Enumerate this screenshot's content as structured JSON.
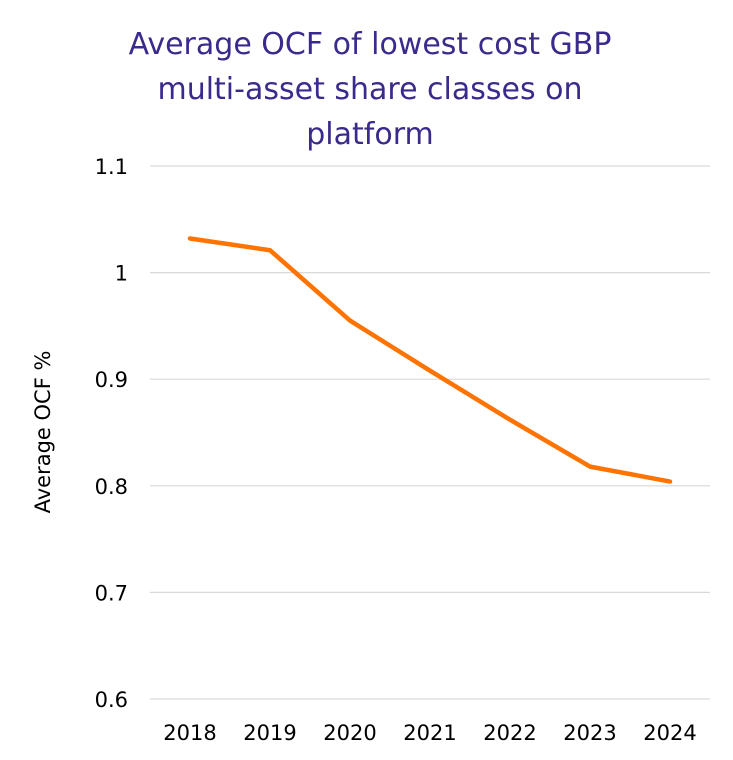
{
  "chart_data": {
    "type": "line",
    "title_lines": [
      "Average OCF of lowest cost GBP",
      "multi-asset share classes on",
      "platform"
    ],
    "xlabel": "",
    "ylabel": "Average OCF %",
    "categories": [
      "2018",
      "2019",
      "2020",
      "2021",
      "2022",
      "2023",
      "2024"
    ],
    "series": [
      {
        "values": [
          1.032,
          1.021,
          0.955,
          0.908,
          0.862,
          0.818,
          0.804
        ]
      }
    ],
    "ylim": [
      0.6,
      1.1
    ],
    "yticks": [
      "0.6",
      "0.7",
      "0.8",
      "0.9",
      "1",
      "1.1"
    ],
    "grid": true,
    "legend": "none"
  },
  "colors": {
    "title": "#3a2a8c",
    "line": "#ff7300",
    "grid": "#d9d9d9",
    "text": "#000000"
  }
}
